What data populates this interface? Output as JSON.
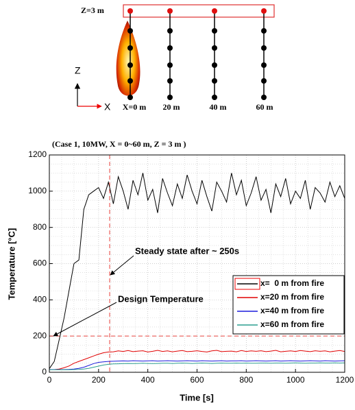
{
  "diagram": {
    "z_label": "Z=3 m",
    "x_labels": [
      "X=0 m",
      "20 m",
      "40 m",
      "60 m"
    ],
    "axis_z": "Z",
    "axis_x": "X"
  },
  "chart_data": {
    "type": "line",
    "title": "(Case 1, 10MW, X = 0~60 m, Z = 3 m )",
    "x_label": "Time [s]",
    "y_label": "Temperature [°C]",
    "annotations": [
      "Steady state after ~ 250s",
      "Design Temperature"
    ],
    "vlines": [
      245
    ],
    "hlines": [
      200
    ],
    "ref_color": "#e8413c",
    "x": [
      0,
      20,
      40,
      60,
      80,
      100,
      120,
      140,
      160,
      180,
      200,
      220,
      240,
      260,
      280,
      300,
      320,
      340,
      360,
      380,
      400,
      420,
      440,
      460,
      480,
      500,
      520,
      540,
      560,
      580,
      600,
      620,
      640,
      660,
      680,
      700,
      720,
      740,
      760,
      780,
      800,
      820,
      840,
      860,
      880,
      900,
      920,
      940,
      960,
      980,
      1000,
      1020,
      1040,
      1060,
      1080,
      1100,
      1120,
      1140,
      1160,
      1180,
      1200
    ],
    "series": [
      {
        "name": "x=  0 m from fire",
        "color": "#000000",
        "values": [
          20,
          60,
          180,
          300,
          450,
          600,
          620,
          900,
          980,
          1000,
          1020,
          960,
          1050,
          930,
          1080,
          1000,
          900,
          1060,
          980,
          1100,
          950,
          1010,
          880,
          1070,
          990,
          920,
          1040,
          960,
          1090,
          1000,
          930,
          1060,
          970,
          890,
          1050,
          1000,
          940,
          1100,
          980,
          1060,
          920,
          990,
          1080,
          950,
          1010,
          880,
          1040,
          970,
          1070,
          930,
          1000,
          960,
          1060,
          900,
          1020,
          990,
          940,
          1050,
          970,
          1030,
          960
        ]
      },
      {
        "name": "x=20 m from fire",
        "color": "#e00000",
        "values": [
          15,
          15,
          18,
          25,
          35,
          50,
          60,
          70,
          80,
          90,
          100,
          108,
          112,
          113,
          118,
          115,
          120,
          114,
          117,
          119,
          112,
          116,
          121,
          115,
          118,
          113,
          117,
          120,
          114,
          116,
          119,
          115,
          112,
          118,
          121,
          114,
          116,
          117,
          113,
          120,
          115,
          118,
          116,
          119,
          114,
          117,
          121,
          113,
          116,
          118,
          115,
          120,
          117,
          114,
          119,
          116,
          118,
          113,
          117,
          120,
          115
        ]
      },
      {
        "name": "x=40 m from fire",
        "color": "#1a1adc",
        "values": [
          15,
          15,
          15,
          15,
          16,
          18,
          22,
          28,
          38,
          48,
          55,
          58,
          60,
          61,
          62,
          63,
          62,
          64,
          63,
          62,
          63,
          64,
          62,
          63,
          64,
          63,
          62,
          63,
          64,
          63,
          62,
          64,
          63,
          62,
          63,
          64,
          62,
          63,
          63,
          64,
          62,
          63,
          64,
          63,
          62,
          63,
          64,
          62,
          63,
          64,
          63,
          62,
          63,
          64,
          63,
          62,
          64,
          63,
          62,
          63,
          64
        ]
      },
      {
        "name": "x=60 m from fire",
        "color": "#2a9d8f",
        "values": [
          14,
          14,
          14,
          14,
          14,
          15,
          16,
          18,
          22,
          28,
          34,
          40,
          44,
          46,
          47,
          48,
          49,
          48,
          49,
          50,
          49,
          48,
          49,
          50,
          50,
          49,
          50,
          51,
          50,
          49,
          50,
          51,
          50,
          49,
          50,
          51,
          50,
          50,
          51,
          50,
          51,
          50,
          50,
          51,
          51,
          50,
          51,
          51,
          50,
          51,
          52,
          51,
          50,
          51,
          51,
          52,
          51,
          51,
          52,
          51,
          52
        ]
      }
    ],
    "xlim": [
      0,
      1200
    ],
    "ylim": [
      0,
      1200
    ],
    "xticks": [
      0,
      200,
      400,
      600,
      800,
      1000,
      1200
    ],
    "yticks": [
      0,
      200,
      400,
      600,
      800,
      1000,
      1200
    ],
    "grid": true,
    "legend": "lower right"
  }
}
